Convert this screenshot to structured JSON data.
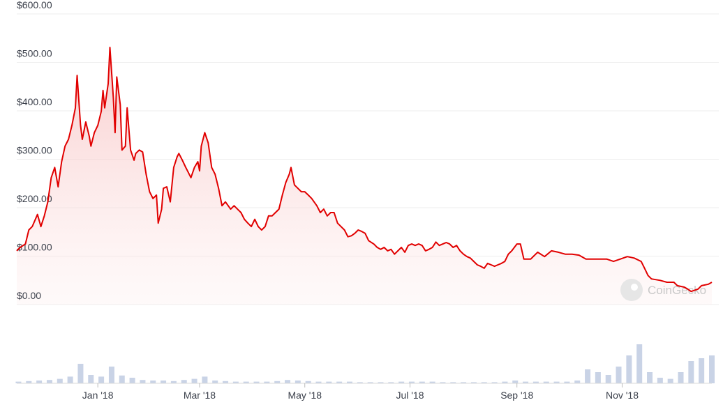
{
  "chart_data": {
    "type": "line",
    "color": "#e10000",
    "x": [
      -47,
      -45,
      -42,
      -40,
      -38,
      -35,
      -33,
      -31,
      -29,
      -27,
      -25,
      -23,
      -21,
      -19,
      -17,
      -15,
      -13,
      -12,
      -10,
      -9,
      -7,
      -5,
      -4,
      -2,
      0,
      2,
      3,
      4,
      6,
      7,
      9,
      10,
      11,
      13,
      14,
      16,
      17,
      19,
      21,
      22,
      24,
      26,
      28,
      30,
      32,
      34,
      35,
      37,
      38,
      40,
      42,
      44,
      46,
      47,
      49,
      51,
      52,
      54,
      56,
      58,
      59,
      60,
      62,
      64,
      66,
      68,
      70,
      72,
      74,
      77,
      79,
      81,
      83,
      85,
      87,
      89,
      91,
      93,
      95,
      97,
      99,
      101,
      103,
      105,
      107,
      109,
      111,
      112,
      114,
      116,
      118,
      120,
      122,
      124,
      127,
      129,
      131,
      133,
      135,
      137,
      139,
      141,
      143,
      145,
      147,
      149,
      151,
      153,
      155,
      157,
      160,
      162,
      164,
      166,
      168,
      170,
      172,
      174,
      176,
      178,
      180,
      182,
      184,
      186,
      188,
      190,
      192,
      194,
      196,
      198,
      200,
      202,
      204,
      206,
      208,
      210,
      212,
      214,
      216,
      218,
      220,
      222,
      224,
      226,
      228,
      230,
      232,
      234,
      236,
      238,
      240,
      243,
      245,
      247,
      251,
      255,
      259,
      263,
      267,
      271,
      275,
      279,
      283,
      287,
      291,
      295,
      299,
      303,
      307,
      311,
      315,
      317,
      319,
      321,
      326,
      330,
      334,
      336,
      340,
      342,
      344,
      348,
      350,
      354,
      356
    ],
    "values": [
      111,
      118,
      125,
      154,
      161,
      186,
      161,
      183,
      212,
      262,
      283,
      243,
      295,
      327,
      341,
      370,
      406,
      473,
      370,
      341,
      377,
      348,
      327,
      355,
      370,
      399,
      442,
      406,
      456,
      531,
      427,
      355,
      470,
      413,
      319,
      327,
      406,
      319,
      298,
      312,
      319,
      315,
      269,
      233,
      219,
      226,
      168,
      197,
      240,
      243,
      212,
      283,
      305,
      312,
      298,
      283,
      276,
      262,
      283,
      295,
      276,
      327,
      355,
      334,
      283,
      269,
      240,
      204,
      212,
      197,
      204,
      197,
      190,
      176,
      168,
      161,
      176,
      161,
      154,
      161,
      183,
      183,
      190,
      197,
      226,
      252,
      269,
      283,
      247,
      240,
      233,
      233,
      226,
      219,
      204,
      190,
      197,
      183,
      190,
      190,
      168,
      161,
      154,
      140,
      142,
      147,
      154,
      151,
      147,
      132,
      125,
      118,
      114,
      118,
      111,
      114,
      104,
      111,
      118,
      108,
      122,
      125,
      122,
      125,
      122,
      111,
      114,
      118,
      129,
      122,
      125,
      128,
      125,
      118,
      122,
      111,
      104,
      99,
      96,
      89,
      82,
      79,
      75,
      85,
      82,
      79,
      82,
      85,
      89,
      104,
      111,
      125,
      125,
      94,
      94,
      108,
      99,
      111,
      108,
      104,
      104,
      102,
      94,
      94,
      94,
      94,
      89,
      94,
      99,
      96,
      89,
      75,
      60,
      53,
      50,
      46,
      46,
      39,
      36,
      32,
      27,
      32,
      39,
      42,
      46
    ],
    "xlim": [
      -47,
      356
    ],
    "xticks": [
      {
        "value": 0,
        "label": "Jan '18"
      },
      {
        "value": 59,
        "label": "Mar '18"
      },
      {
        "value": 120,
        "label": "May '18"
      },
      {
        "value": 181,
        "label": "Jul '18"
      },
      {
        "value": 243,
        "label": "Sep '18"
      },
      {
        "value": 304,
        "label": "Nov '18"
      }
    ],
    "ylim": [
      0,
      600
    ],
    "yticks": [
      {
        "value": 0,
        "label": "$0.00"
      },
      {
        "value": 100,
        "label": "$100.00"
      },
      {
        "value": 200,
        "label": "$200.00"
      },
      {
        "value": 300,
        "label": "$300.00"
      },
      {
        "value": 400,
        "label": "$400.00"
      },
      {
        "value": 500,
        "label": "$500.00"
      },
      {
        "value": 600,
        "label": "$600.00"
      }
    ],
    "grid": true,
    "volume": {
      "axis": "y2",
      "color": "#c9d3e6",
      "x": [
        -46,
        -40,
        -34,
        -28,
        -22,
        -16,
        -10,
        -4,
        2,
        8,
        14,
        20,
        26,
        32,
        38,
        44,
        50,
        56,
        62,
        68,
        74,
        80,
        86,
        92,
        98,
        104,
        110,
        116,
        122,
        128,
        134,
        140,
        146,
        152,
        158,
        164,
        170,
        176,
        182,
        188,
        194,
        200,
        206,
        212,
        218,
        224,
        230,
        236,
        242,
        248,
        254,
        260,
        266,
        272,
        278,
        284,
        290,
        296,
        302,
        308,
        314,
        320,
        326,
        332,
        338,
        344,
        350,
        356
      ],
      "values": [
        3,
        4,
        5,
        6,
        8,
        12,
        35,
        15,
        12,
        30,
        14,
        10,
        6,
        5,
        5,
        4,
        6,
        8,
        12,
        5,
        4,
        3,
        3,
        3,
        3,
        4,
        6,
        5,
        4,
        3,
        3,
        3,
        3,
        2,
        2,
        2,
        2,
        3,
        3,
        3,
        3,
        2,
        2,
        2,
        2,
        2,
        2,
        3,
        5,
        3,
        3,
        3,
        3,
        3,
        5,
        25,
        20,
        15,
        30,
        50,
        70,
        20,
        10,
        8,
        20,
        40,
        45,
        50
      ]
    },
    "y2lim": [
      0,
      100
    ],
    "watermark": "CoinGecko"
  }
}
